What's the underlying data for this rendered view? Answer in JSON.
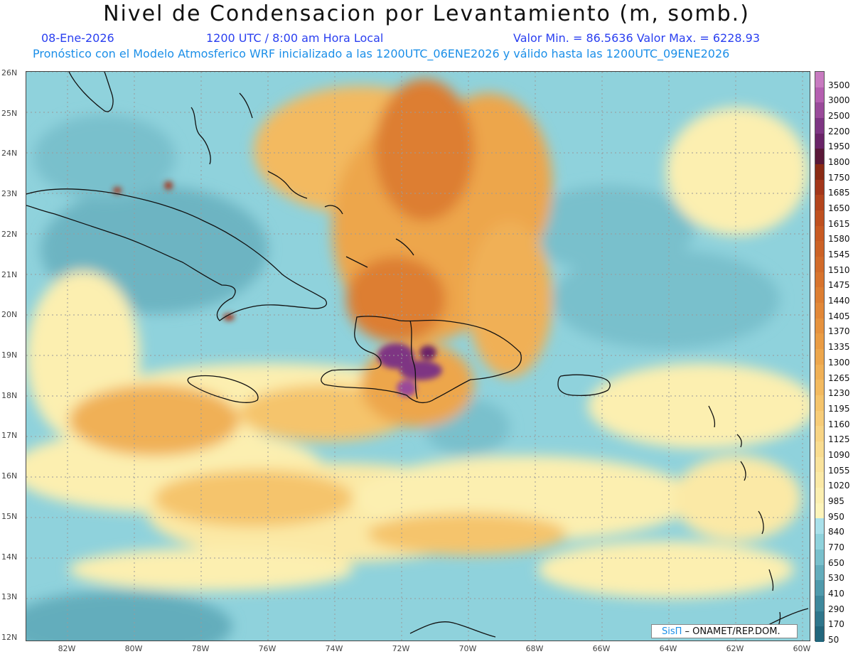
{
  "header": {
    "title": "Nivel de Condensacion por Levantamiento (m, somb.)",
    "date": "08-Ene-2026",
    "time": "1200 UTC / 8:00 am Hora Local",
    "value_range": "Valor Min. = 86.5636  Valor Max. = 6228.93",
    "forecast_info": "Pronóstico con el Modelo Atmosferico WRF inicializado a las 1200UTC_06ENE2026 y válido hasta las  1200UTC_09ENE2026"
  },
  "axes": {
    "lat_labels": [
      "26N",
      "25N",
      "24N",
      "23N",
      "22N",
      "21N",
      "20N",
      "19N",
      "18N",
      "17N",
      "16N",
      "15N",
      "14N",
      "13N",
      "12N"
    ],
    "lon_labels": [
      "82W",
      "80W",
      "78W",
      "76W",
      "74W",
      "72W",
      "70W",
      "68W",
      "66W",
      "64W",
      "62W",
      "60W"
    ]
  },
  "colorbar": {
    "labels": [
      "3500",
      "3000",
      "2500",
      "2200",
      "1950",
      "1800",
      "1750",
      "1685",
      "1650",
      "1615",
      "1580",
      "1545",
      "1510",
      "1475",
      "1440",
      "1405",
      "1370",
      "1335",
      "1300",
      "1265",
      "1230",
      "1195",
      "1160",
      "1125",
      "1090",
      "1055",
      "1020",
      "985",
      "950",
      "840",
      "770",
      "650",
      "530",
      "410",
      "290",
      "170",
      "50"
    ],
    "colors": [
      "#c87ac0",
      "#b55fb0",
      "#9a4a9a",
      "#7e3583",
      "#6a2468",
      "#5a1838",
      "#8a2a14",
      "#a3361a",
      "#b3441c",
      "#bf501f",
      "#c85a22",
      "#cc6226",
      "#d26b2a",
      "#d8742e",
      "#dd7e32",
      "#e28838",
      "#e6923e",
      "#ea9c44",
      "#eda64c",
      "#f0b056",
      "#f3ba60",
      "#f5c46c",
      "#f7cc78",
      "#f8d484",
      "#f9dc90",
      "#fae39c",
      "#fbe9a6",
      "#fcefb0",
      "#fdf4ba",
      "#a9e0ea",
      "#8fd2dc",
      "#79c0cc",
      "#64adbc",
      "#4f9aac",
      "#3e889c",
      "#2f768c",
      "#22667c"
    ]
  },
  "credit": {
    "brand": "SisΠ",
    "text": " – ONAMET/REP.DOM."
  },
  "map_data": {
    "lat_range": [
      12,
      26
    ],
    "lon_range": [
      -83,
      -60
    ],
    "field_min": 86.5636,
    "field_max": 6228.93
  }
}
